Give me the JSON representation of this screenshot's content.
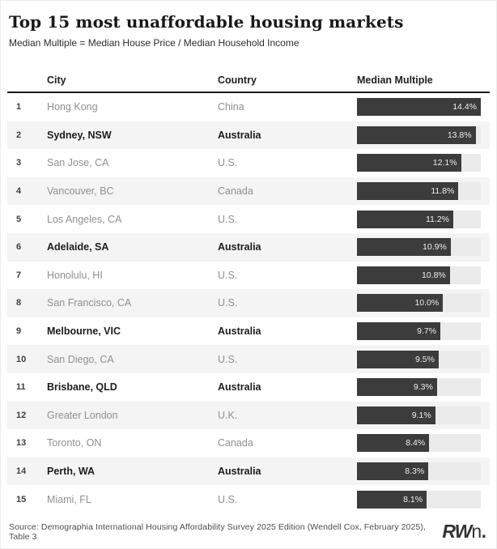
{
  "title": "Top 15 most unaffordable housing markets",
  "subtitle": "Median Multiple = Median House Price / Median Household Income",
  "columns": {
    "city": "City",
    "country": "Country",
    "value": "Median Multiple"
  },
  "footer": {
    "source": "Source: Demographia International Housing Affordability Survey 2025 Edition (Wendell Cox, February 2025), Table 3",
    "logo_rw": "RW",
    "logo_n": "n",
    "logo_dot": "."
  },
  "colors": {
    "bar_fill": "#3c3c3c",
    "bar_track": "#ebebeb",
    "row_stripe": "#f4f4f4",
    "highlight_text": "#1c1c1c",
    "normal_text": "#8f8f8f"
  },
  "chart_data": {
    "type": "bar",
    "title": "Top 15 most unaffordable housing markets",
    "subtitle": "Median Multiple = Median House Price / Median Household Income",
    "xlabel": "Median Multiple",
    "ylabel": "City",
    "xlim": [
      0,
      14.4
    ],
    "grid": false,
    "orientation": "horizontal",
    "categories": [
      "Hong Kong",
      "Sydney, NSW",
      "San Jose, CA",
      "Vancouver, BC",
      "Los Angeles, CA",
      "Adelaide, SA",
      "Honolulu, HI",
      "San Francisco, CA",
      "Melbourne, VIC",
      "San Diego, CA",
      "Brisbane, QLD",
      "Greater London",
      "Toronto, ON",
      "Perth, WA",
      "Miami, FL"
    ],
    "countries": [
      "China",
      "Australia",
      "U.S.",
      "Canada",
      "U.S.",
      "Australia",
      "U.S.",
      "U.S.",
      "Australia",
      "U.S.",
      "Australia",
      "U.K.",
      "Canada",
      "Australia",
      "U.S."
    ],
    "values": [
      14.4,
      13.8,
      12.1,
      11.8,
      11.2,
      10.9,
      10.8,
      10.0,
      9.7,
      9.5,
      9.3,
      9.1,
      8.4,
      8.3,
      8.1
    ],
    "value_labels": [
      "14.4%",
      "13.8%",
      "12.1%",
      "11.8%",
      "11.2%",
      "10.9%",
      "10.8%",
      "10.0%",
      "9.7%",
      "9.5%",
      "9.3%",
      "9.1%",
      "8.4%",
      "8.3%",
      "8.1%"
    ],
    "source": "Demographia International Housing Affordability Survey 2025 Edition (Wendell Cox, February 2025), Table 3"
  },
  "rows": [
    {
      "rank": "1",
      "city": "Hong Kong",
      "country": "China",
      "value": 14.4,
      "label": "14.4%",
      "highlight": false
    },
    {
      "rank": "2",
      "city": "Sydney, NSW",
      "country": "Australia",
      "value": 13.8,
      "label": "13.8%",
      "highlight": true
    },
    {
      "rank": "3",
      "city": "San Jose, CA",
      "country": "U.S.",
      "value": 12.1,
      "label": "12.1%",
      "highlight": false
    },
    {
      "rank": "4",
      "city": "Vancouver, BC",
      "country": "Canada",
      "value": 11.8,
      "label": "11.8%",
      "highlight": false
    },
    {
      "rank": "5",
      "city": "Los Angeles, CA",
      "country": "U.S.",
      "value": 11.2,
      "label": "11.2%",
      "highlight": false
    },
    {
      "rank": "6",
      "city": "Adelaide, SA",
      "country": "Australia",
      "value": 10.9,
      "label": "10.9%",
      "highlight": true
    },
    {
      "rank": "7",
      "city": "Honolulu, HI",
      "country": "U.S.",
      "value": 10.8,
      "label": "10.8%",
      "highlight": false
    },
    {
      "rank": "8",
      "city": "San Francisco, CA",
      "country": "U.S.",
      "value": 10.0,
      "label": "10.0%",
      "highlight": false
    },
    {
      "rank": "9",
      "city": "Melbourne, VIC",
      "country": "Australia",
      "value": 9.7,
      "label": "9.7%",
      "highlight": true
    },
    {
      "rank": "10",
      "city": "San Diego, CA",
      "country": "U.S.",
      "value": 9.5,
      "label": "9.5%",
      "highlight": false
    },
    {
      "rank": "11",
      "city": "Brisbane, QLD",
      "country": "Australia",
      "value": 9.3,
      "label": "9.3%",
      "highlight": true
    },
    {
      "rank": "12",
      "city": "Greater London",
      "country": "U.K.",
      "value": 9.1,
      "label": "9.1%",
      "highlight": false
    },
    {
      "rank": "13",
      "city": "Toronto, ON",
      "country": "Canada",
      "value": 8.4,
      "label": "8.4%",
      "highlight": false
    },
    {
      "rank": "14",
      "city": "Perth, WA",
      "country": "Australia",
      "value": 8.3,
      "label": "8.3%",
      "highlight": true
    },
    {
      "rank": "15",
      "city": "Miami, FL",
      "country": "U.S.",
      "value": 8.1,
      "label": "8.1%",
      "highlight": false
    }
  ]
}
